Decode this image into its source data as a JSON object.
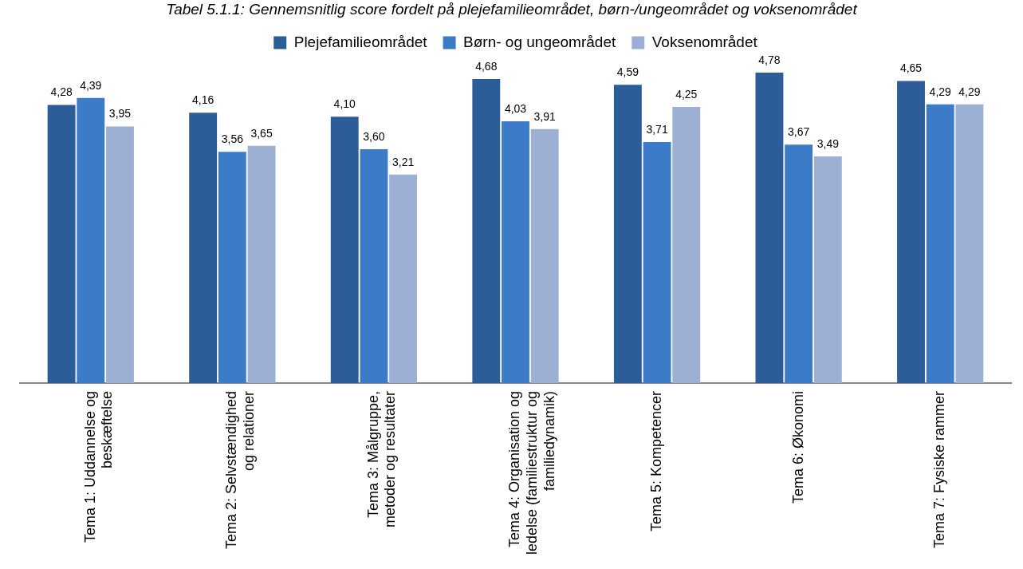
{
  "chart_data": {
    "type": "bar",
    "title": "Tabel 5.1.1: Gennemsnitlig score fordelt på plejefamilieområdet, børn-/ungeområdet og voksenområdet",
    "categories": [
      "Tema 1: Uddannelse og\nbeskæftelse",
      "Tema 2: Selvstændighed\nog relationer",
      "Tema 3: Målgruppe,\nmetoder og resultater",
      "Tema 4: Organisation og\nledelse (familiestruktur og\nfamiliedynamik)",
      "Tema 5: Kompetencer",
      "Tema 6: Økonomi",
      "Tema 7: Fysiske rammer"
    ],
    "series": [
      {
        "name": "Plejefamilieområdet",
        "color": "#2c5d98",
        "values": [
          4.28,
          4.16,
          4.1,
          4.68,
          4.59,
          4.78,
          4.65
        ],
        "value_labels": [
          "4,28",
          "4,16",
          "4,10",
          "4,68",
          "4,59",
          "4,78",
          "4,65"
        ]
      },
      {
        "name": "Børn- og ungeområdet",
        "color": "#3c7bc8",
        "values": [
          4.39,
          3.56,
          3.6,
          4.03,
          3.71,
          3.67,
          4.29
        ],
        "value_labels": [
          "4,39",
          "3,56",
          "3,60",
          "4,03",
          "3,71",
          "3,67",
          "4,29"
        ]
      },
      {
        "name": "Voksenområdet",
        "color": "#9cb0d4",
        "values": [
          3.95,
          3.65,
          3.21,
          3.91,
          4.25,
          3.49,
          4.29
        ],
        "value_labels": [
          "3,95",
          "3,65",
          "3,21",
          "3,91",
          "4,25",
          "3,49",
          "4,29"
        ]
      }
    ],
    "legend": "top",
    "grid": false
  }
}
